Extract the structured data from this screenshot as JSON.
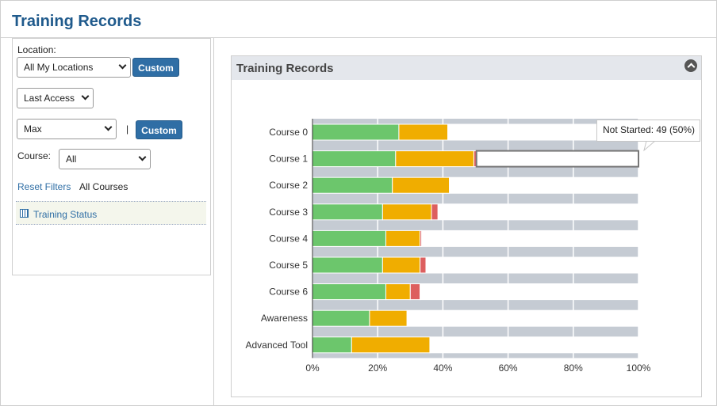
{
  "page": {
    "title": "Training Records"
  },
  "filters": {
    "location_label": "Location:",
    "location_value": "All My Locations",
    "custom_label": "Custom",
    "access_value": "Last Access",
    "range_value": "Max",
    "separator": "|",
    "course_label": "Course:",
    "course_value": "All",
    "reset_label": "Reset Filters",
    "all_courses": "All Courses",
    "status_item": "Training Status"
  },
  "panel": {
    "title": "Training Records"
  },
  "tooltip": {
    "text": "Not Started: 49 (50%)"
  },
  "colors": {
    "completed": "#6cc66c",
    "in_progress": "#f0ad00",
    "overdue": "#dd5f5f",
    "not_started": "#ffffff",
    "track": "#c5cbd3"
  },
  "chart_data": {
    "type": "bar",
    "orientation": "horizontal",
    "stacked": true,
    "categories": [
      "Course 0",
      "Course 1",
      "Course 2",
      "Course 3",
      "Course 4",
      "Course 5",
      "Course 6",
      "Awareness",
      "Advanced Tool"
    ],
    "series": [
      {
        "key": "completed",
        "values": [
          26.5,
          25.5,
          24.5,
          21.5,
          22.5,
          21.5,
          22.5,
          17.5,
          12
        ]
      },
      {
        "key": "in_progress",
        "values": [
          15,
          24,
          17.5,
          15,
          10.5,
          11.5,
          7.5,
          11.5,
          24
        ]
      },
      {
        "key": "overdue",
        "values": [
          0,
          0.8,
          0,
          2,
          0.5,
          1.8,
          3,
          0,
          0
        ]
      },
      {
        "name": "Not Started",
        "key": "not_started",
        "values": [
          58.5,
          49.7,
          58,
          61.5,
          66.5,
          65.2,
          67,
          71,
          64
        ]
      }
    ],
    "x_ticks": [
      "0%",
      "20%",
      "40%",
      "60%",
      "80%",
      "100%"
    ],
    "xlim": [
      0,
      100
    ],
    "highlighted": {
      "category": "Course 1",
      "series": "Not Started",
      "count": 49,
      "percent": 50
    }
  }
}
